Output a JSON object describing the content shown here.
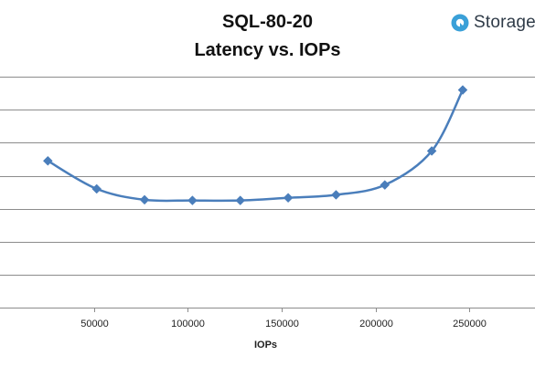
{
  "brand": {
    "name": "Storage",
    "icon": "storage-logo-icon",
    "icon_color": "#3aa0d8"
  },
  "chart_data": {
    "type": "line",
    "title": "SQL-80-20",
    "subtitle": "Latency vs. IOPs",
    "xlabel": "IOPs",
    "ylabel": "",
    "xlim": [
      0,
      285000
    ],
    "ylim": [
      0,
      8
    ],
    "x_ticks": [
      50000,
      100000,
      150000,
      200000,
      250000
    ],
    "x_tick_labels": [
      "50000",
      "100000",
      "150000",
      "200000",
      "250000"
    ],
    "y_gridlines": [
      1,
      2,
      3,
      4,
      5,
      6,
      7,
      8
    ],
    "y_tick_labels_visible": false,
    "grid": true,
    "smooth": true,
    "marker": "diamond",
    "series_color": "#4a7ebb",
    "series": [
      {
        "x": [
          25500,
          51500,
          77000,
          102500,
          128000,
          153500,
          179000,
          205000,
          230000,
          246500
        ],
        "y": [
          4.45,
          3.6,
          3.27,
          3.25,
          3.25,
          3.33,
          3.42,
          3.72,
          4.75,
          6.6
        ]
      }
    ]
  }
}
